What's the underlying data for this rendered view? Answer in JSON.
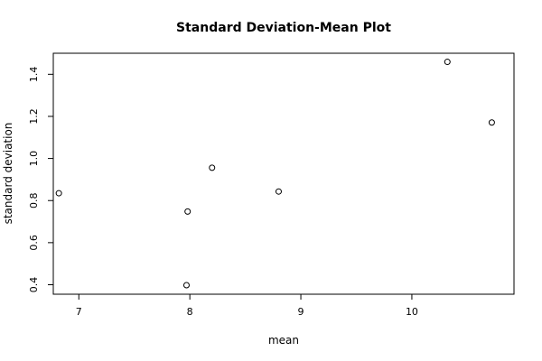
{
  "chart_data": {
    "type": "scatter",
    "title": "Standard Deviation-Mean Plot",
    "xlabel": "mean",
    "ylabel": "standard deviation",
    "xlim": [
      6.77,
      10.92
    ],
    "ylim": [
      0.355,
      1.5
    ],
    "x_ticks": [
      7,
      8,
      9,
      10
    ],
    "y_ticks": [
      0.4,
      0.6,
      0.8,
      1.0,
      1.2,
      1.4
    ],
    "x_tick_labels": [
      "7",
      "8",
      "9",
      "10"
    ],
    "y_tick_labels": [
      "0.4",
      "0.6",
      "0.8",
      "1.0",
      "1.2",
      "1.4"
    ],
    "points": [
      {
        "x": 6.82,
        "y": 0.835
      },
      {
        "x": 7.98,
        "y": 0.748
      },
      {
        "x": 7.97,
        "y": 0.398
      },
      {
        "x": 8.2,
        "y": 0.956
      },
      {
        "x": 8.8,
        "y": 0.843
      },
      {
        "x": 10.32,
        "y": 1.459
      },
      {
        "x": 10.72,
        "y": 1.171
      }
    ],
    "grid": false,
    "marker": "open-circle",
    "colors": {
      "points": "#000000",
      "axes": "#000000",
      "background": "#ffffff"
    }
  }
}
